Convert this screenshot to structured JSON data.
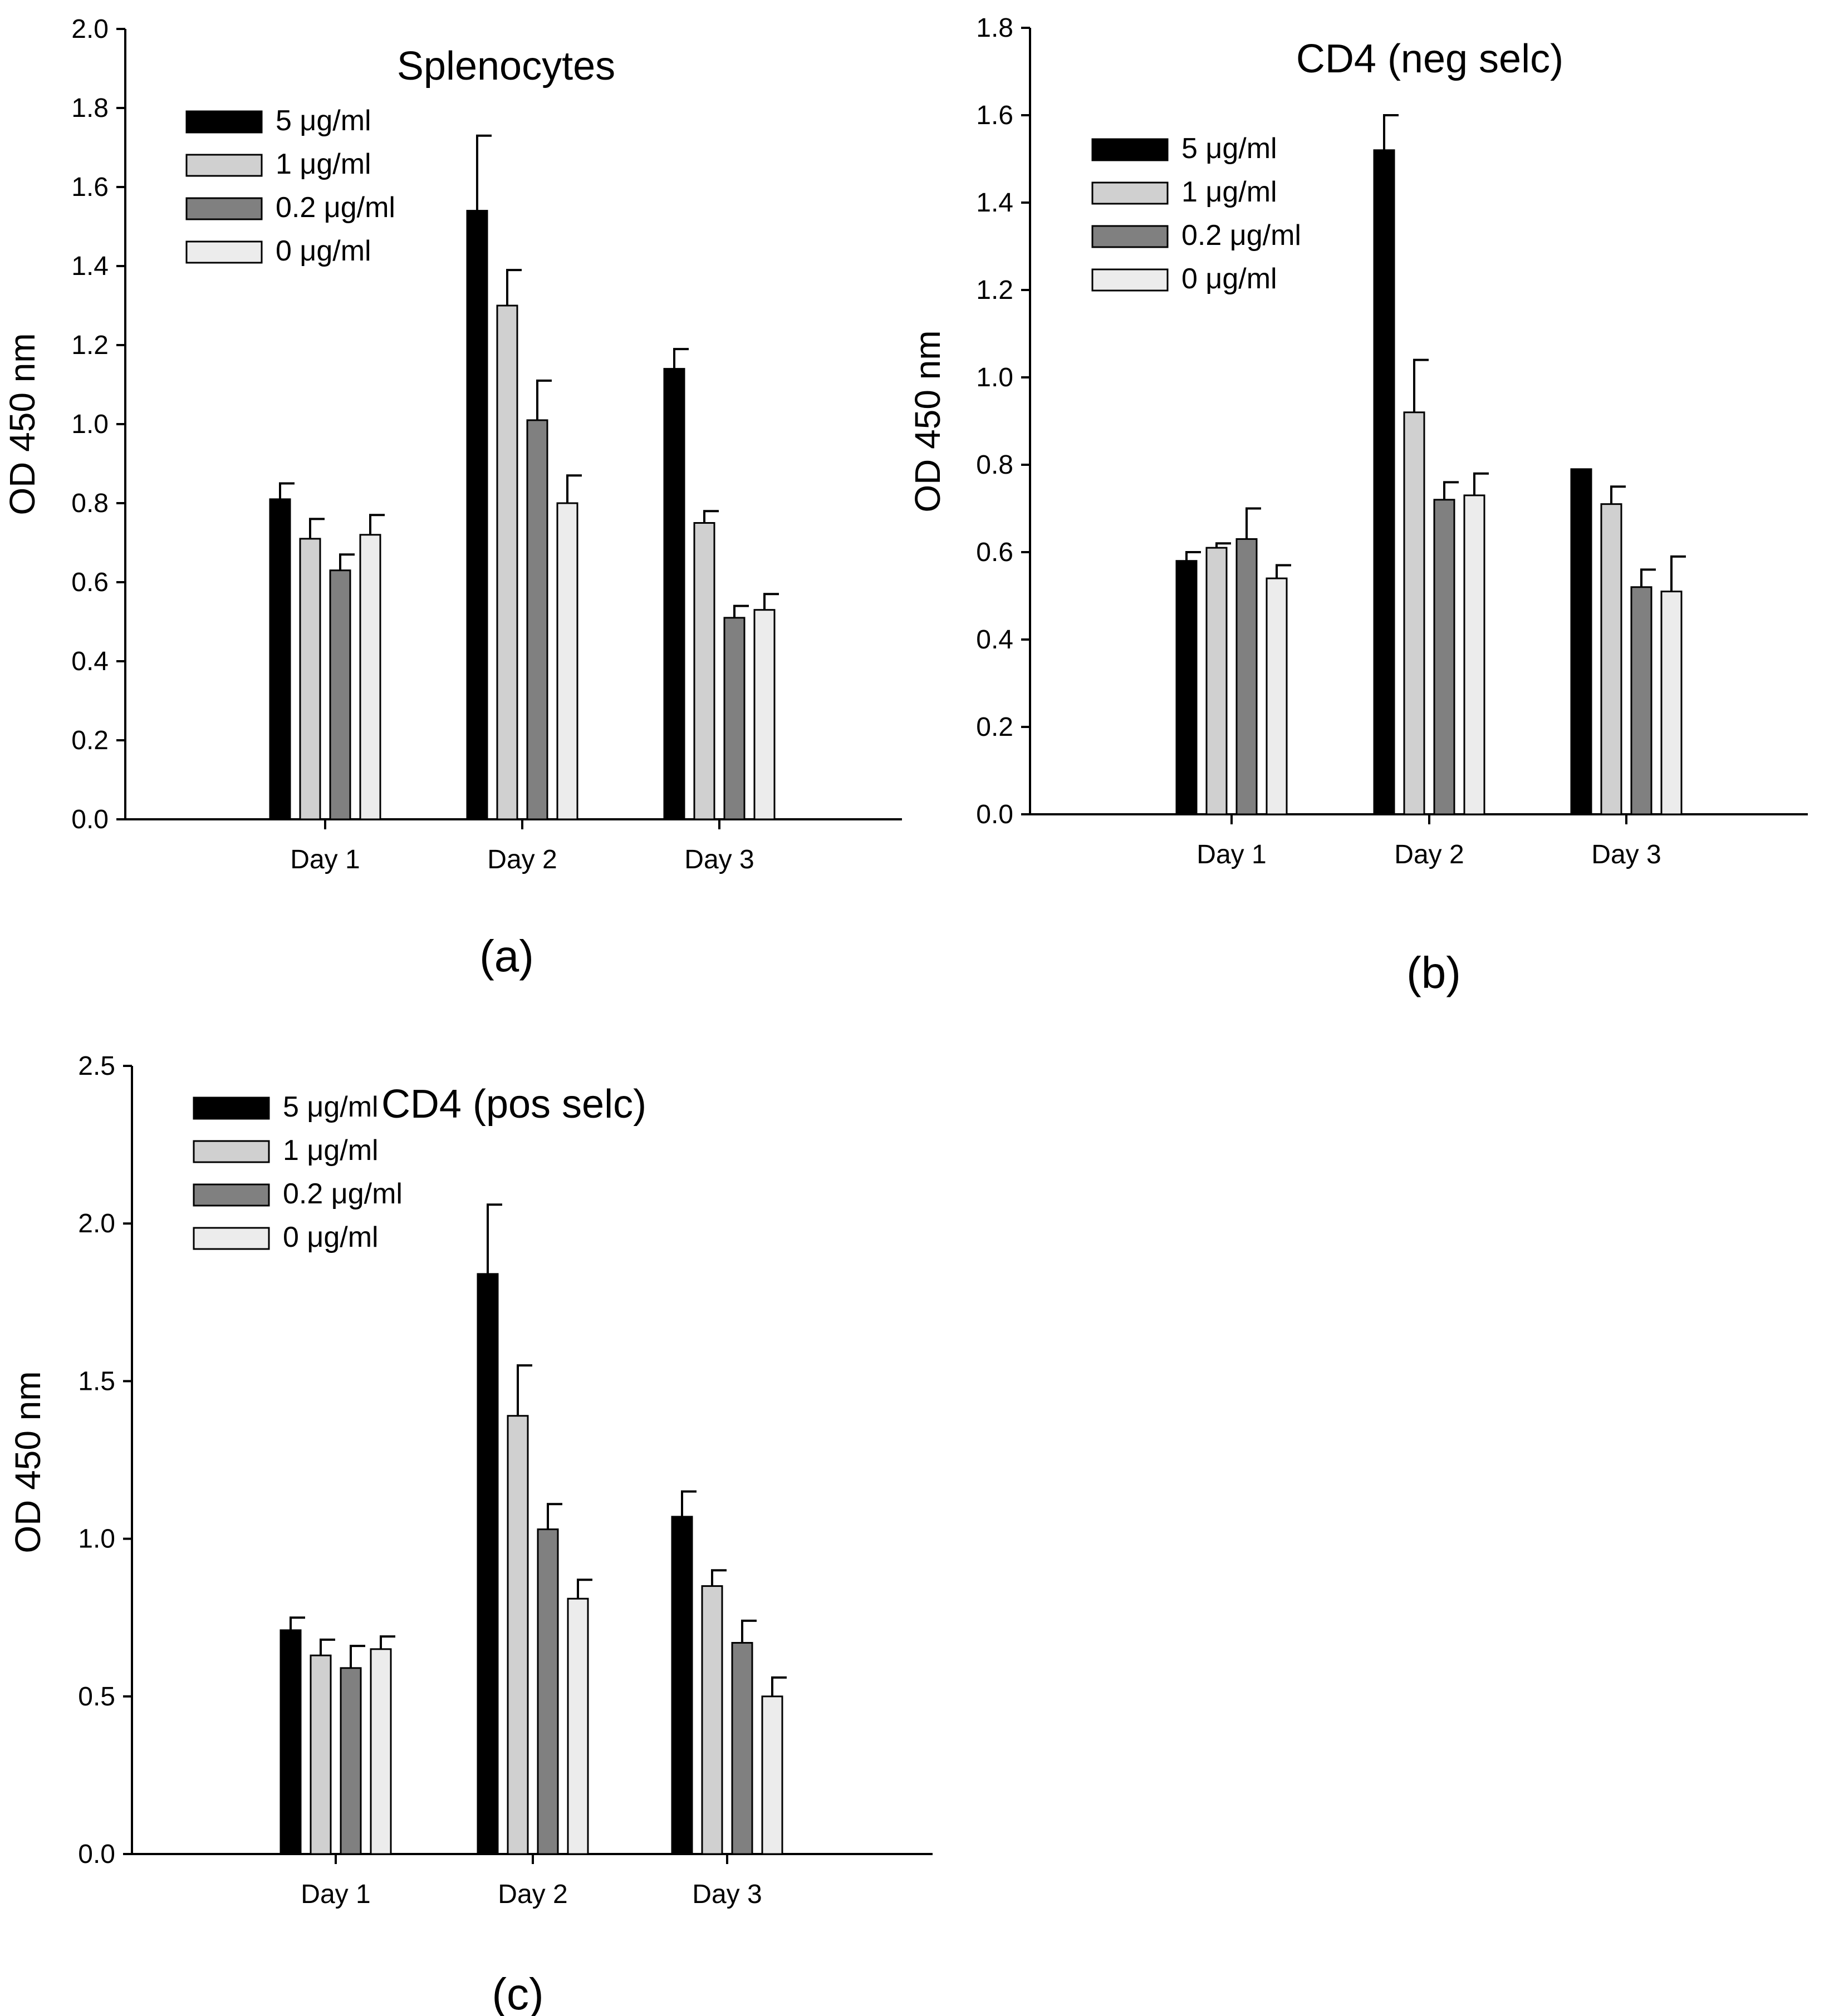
{
  "figure": {
    "panels": [
      {
        "label": "(a)"
      },
      {
        "label": "(b)"
      },
      {
        "label": "(c)"
      }
    ]
  },
  "chart_data": [
    {
      "type": "bar",
      "title": "Splenocytes",
      "xlabel": "",
      "ylabel": "OD 450 nm",
      "categories": [
        "Day 1",
        "Day 2",
        "Day 3"
      ],
      "ylim": [
        0,
        2.0
      ],
      "yticks": [
        0.0,
        0.2,
        0.4,
        0.6,
        0.8,
        1.0,
        1.2,
        1.4,
        1.6,
        1.8,
        2.0
      ],
      "ytick_labels": [
        "0.0",
        "0.2",
        "0.4",
        "0.6",
        "0.8",
        "1.0",
        "1.2",
        "1.4",
        "1.6",
        "1.8",
        "2.0"
      ],
      "legend_position": "top-left",
      "series": [
        {
          "name": "5 μg/ml",
          "color": "#000000",
          "values": [
            0.81,
            1.54,
            1.14
          ],
          "errors": [
            0.04,
            0.19,
            0.05
          ]
        },
        {
          "name": "1 μg/ml",
          "color": "#d0d0d0",
          "values": [
            0.71,
            1.3,
            0.75
          ],
          "errors": [
            0.05,
            0.09,
            0.03
          ]
        },
        {
          "name": "0.2 μg/ml",
          "color": "#808080",
          "values": [
            0.63,
            1.01,
            0.51
          ],
          "errors": [
            0.04,
            0.1,
            0.03
          ]
        },
        {
          "name": "0 μg/ml",
          "color": "#ececec",
          "values": [
            0.72,
            0.8,
            0.53
          ],
          "errors": [
            0.05,
            0.07,
            0.04
          ]
        }
      ]
    },
    {
      "type": "bar",
      "title": "CD4 (neg selc)",
      "xlabel": "",
      "ylabel": "OD 450 nm",
      "categories": [
        "Day 1",
        "Day 2",
        "Day 3"
      ],
      "ylim": [
        0,
        1.8
      ],
      "yticks": [
        0.0,
        0.2,
        0.4,
        0.6,
        0.8,
        1.0,
        1.2,
        1.4,
        1.6,
        1.8
      ],
      "ytick_labels": [
        "0.0",
        "0.2",
        "0.4",
        "0.6",
        "0.8",
        "1.0",
        "1.2",
        "1.4",
        "1.6",
        "1.8"
      ],
      "legend_position": "top-left",
      "series": [
        {
          "name": "5 μg/ml",
          "color": "#000000",
          "values": [
            0.58,
            1.52,
            0.79
          ],
          "errors": [
            0.02,
            0.08,
            0.0
          ]
        },
        {
          "name": "1 μg/ml",
          "color": "#d0d0d0",
          "values": [
            0.61,
            0.92,
            0.71
          ],
          "errors": [
            0.01,
            0.12,
            0.04
          ]
        },
        {
          "name": "0.2 μg/ml",
          "color": "#808080",
          "values": [
            0.63,
            0.72,
            0.52
          ],
          "errors": [
            0.07,
            0.04,
            0.04
          ]
        },
        {
          "name": "0 μg/ml",
          "color": "#ececec",
          "values": [
            0.54,
            0.73,
            0.51
          ],
          "errors": [
            0.03,
            0.05,
            0.08
          ]
        }
      ]
    },
    {
      "type": "bar",
      "title": "CD4 (pos selc)",
      "xlabel": "",
      "ylabel": "OD 450 nm",
      "categories": [
        "Day 1",
        "Day 2",
        "Day 3"
      ],
      "ylim": [
        0,
        2.5
      ],
      "yticks": [
        0.0,
        0.5,
        1.0,
        1.5,
        2.0,
        2.5
      ],
      "ytick_labels": [
        "0.0",
        "0.5",
        "1.0",
        "1.5",
        "2.0",
        "2.5"
      ],
      "legend_position": "top-left",
      "series": [
        {
          "name": "5 μg/ml",
          "color": "#000000",
          "values": [
            0.71,
            1.84,
            1.07
          ],
          "errors": [
            0.04,
            0.22,
            0.08
          ]
        },
        {
          "name": "1 μg/ml",
          "color": "#d0d0d0",
          "values": [
            0.63,
            1.39,
            0.85
          ],
          "errors": [
            0.05,
            0.16,
            0.05
          ]
        },
        {
          "name": "0.2 μg/ml",
          "color": "#808080",
          "values": [
            0.59,
            1.03,
            0.67
          ],
          "errors": [
            0.07,
            0.08,
            0.07
          ]
        },
        {
          "name": "0 μg/ml",
          "color": "#ececec",
          "values": [
            0.65,
            0.81,
            0.5
          ],
          "errors": [
            0.04,
            0.06,
            0.06
          ]
        }
      ]
    }
  ]
}
